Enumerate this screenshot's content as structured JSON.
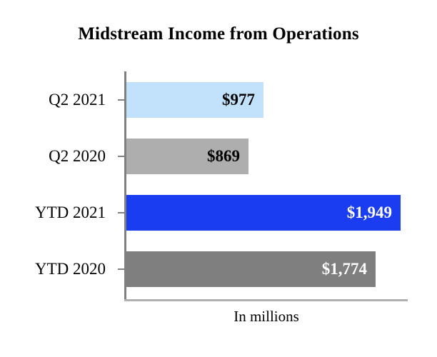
{
  "chart_data": {
    "type": "bar",
    "orientation": "horizontal",
    "title": "Midstream Income from Operations",
    "xlabel": "In millions",
    "categories": [
      "Q2 2021",
      "Q2 2020",
      "YTD 2021",
      "YTD 2020"
    ],
    "values": [
      977,
      869,
      1949,
      1774
    ],
    "data_labels": [
      "$977",
      "$869",
      "$1,949",
      "$1,774"
    ],
    "xlim": [
      0,
      2000
    ],
    "grid": false,
    "legend": "none",
    "bar_colors": [
      "#c2e2fb",
      "#aeaeae",
      "#1b3df2",
      "#7f7f7f"
    ],
    "label_colors": [
      "#000000",
      "#000000",
      "#ffffff",
      "#ffffff"
    ],
    "axis_color": "#808080"
  }
}
